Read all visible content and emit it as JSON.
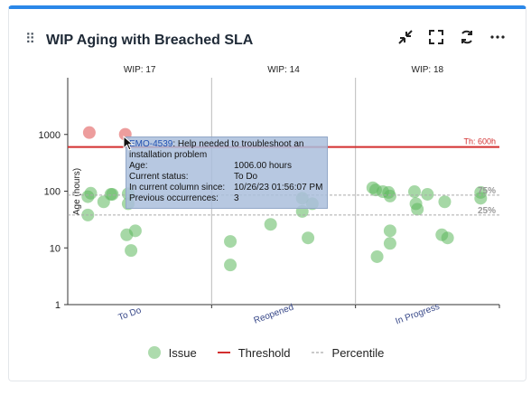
{
  "header": {
    "title": "WIP Aging with Breached SLA",
    "icons": [
      "collapse-icon",
      "fullscreen-icon",
      "refresh-icon",
      "more-icon"
    ]
  },
  "chart_data": {
    "type": "scatter",
    "ylabel": "Age (hours)",
    "yscale": "log",
    "ylim": [
      1,
      10000
    ],
    "yticks": [
      "1",
      "10",
      "100",
      "1000"
    ],
    "categories": [
      "To Do",
      "Reopened",
      "In Progress"
    ],
    "wip_labels": [
      "WIP: 17",
      "WIP: 14",
      "WIP: 18"
    ],
    "threshold": {
      "label": "Th: 600h",
      "value": 600,
      "color": "#d32f2f"
    },
    "percentiles": [
      {
        "label": "75%",
        "value": 85
      },
      {
        "label": "25%",
        "value": 38
      }
    ],
    "points": [
      {
        "col": 0,
        "offset": 0.15,
        "age": 1080,
        "breached": true
      },
      {
        "col": 0,
        "offset": 0.4,
        "age": 1006,
        "breached": true
      },
      {
        "col": 0,
        "offset": 0.14,
        "age": 80,
        "breached": false
      },
      {
        "col": 0,
        "offset": 0.16,
        "age": 92,
        "breached": false
      },
      {
        "col": 0,
        "offset": 0.25,
        "age": 65,
        "breached": false
      },
      {
        "col": 0,
        "offset": 0.3,
        "age": 88,
        "breached": false
      },
      {
        "col": 0,
        "offset": 0.31,
        "age": 88,
        "breached": false
      },
      {
        "col": 0,
        "offset": 0.42,
        "age": 90,
        "breached": false
      },
      {
        "col": 0,
        "offset": 0.42,
        "age": 60,
        "breached": false
      },
      {
        "col": 0,
        "offset": 0.14,
        "age": 38,
        "breached": false
      },
      {
        "col": 0,
        "offset": 0.41,
        "age": 17,
        "breached": false
      },
      {
        "col": 0,
        "offset": 0.47,
        "age": 20,
        "breached": false
      },
      {
        "col": 0,
        "offset": 0.44,
        "age": 9,
        "breached": false
      },
      {
        "col": 1,
        "offset": 0.13,
        "age": 13,
        "breached": false
      },
      {
        "col": 1,
        "offset": 0.13,
        "age": 5,
        "breached": false
      },
      {
        "col": 1,
        "offset": 0.41,
        "age": 26,
        "breached": false
      },
      {
        "col": 1,
        "offset": 0.63,
        "age": 75,
        "breached": false
      },
      {
        "col": 1,
        "offset": 0.63,
        "age": 44,
        "breached": false
      },
      {
        "col": 1,
        "offset": 0.67,
        "age": 15,
        "breached": false
      },
      {
        "col": 1,
        "offset": 0.7,
        "age": 60,
        "breached": false
      },
      {
        "col": 2,
        "offset": 0.12,
        "age": 115,
        "breached": false
      },
      {
        "col": 2,
        "offset": 0.14,
        "age": 105,
        "breached": false
      },
      {
        "col": 2,
        "offset": 0.19,
        "age": 98,
        "breached": false
      },
      {
        "col": 2,
        "offset": 0.23,
        "age": 95,
        "breached": false
      },
      {
        "col": 2,
        "offset": 0.24,
        "age": 82,
        "breached": false
      },
      {
        "col": 2,
        "offset": 0.15,
        "age": 7,
        "breached": false
      },
      {
        "col": 2,
        "offset": 0.24,
        "age": 20,
        "breached": false
      },
      {
        "col": 2,
        "offset": 0.24,
        "age": 12,
        "breached": false
      },
      {
        "col": 2,
        "offset": 0.41,
        "age": 98,
        "breached": false
      },
      {
        "col": 2,
        "offset": 0.42,
        "age": 60,
        "breached": false
      },
      {
        "col": 2,
        "offset": 0.43,
        "age": 48,
        "breached": false
      },
      {
        "col": 2,
        "offset": 0.5,
        "age": 88,
        "breached": false
      },
      {
        "col": 2,
        "offset": 0.6,
        "age": 17,
        "breached": false
      },
      {
        "col": 2,
        "offset": 0.64,
        "age": 15,
        "breached": false
      },
      {
        "col": 2,
        "offset": 0.62,
        "age": 65,
        "breached": false
      },
      {
        "col": 2,
        "offset": 0.87,
        "age": 95,
        "breached": false
      },
      {
        "col": 2,
        "offset": 0.87,
        "age": 75,
        "breached": false
      }
    ],
    "colors": {
      "issue": "#5cb85c",
      "breached": "#e57373",
      "threshold": "#d32f2f",
      "percentile": "#aaaaaa"
    }
  },
  "tooltip": {
    "key": "EMO-4539",
    "summary": ": Help needed to troubleshoot an installation problem",
    "rows": [
      {
        "label": "Age:",
        "value": "1006.00 hours"
      },
      {
        "label": "Current status:",
        "value": "To Do"
      },
      {
        "label": "In current column since:",
        "value": "10/26/23 01:56:07 PM"
      },
      {
        "label": "Previous occurrences:",
        "value": "3"
      }
    ]
  },
  "legend": {
    "issue": "Issue",
    "threshold": "Threshold",
    "percentile": "Percentile"
  }
}
